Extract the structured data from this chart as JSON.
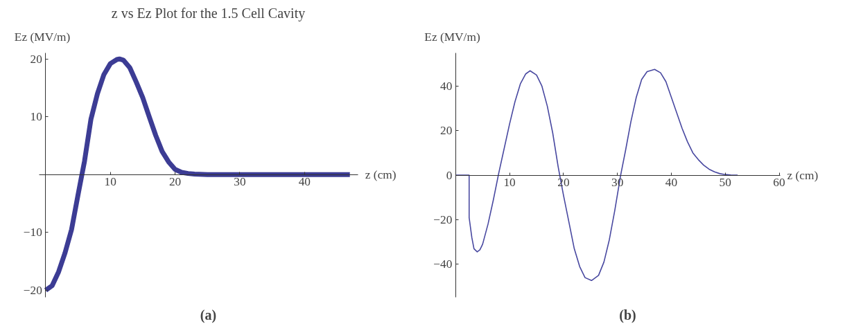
{
  "chart_data": [
    {
      "type": "line",
      "title": "z vs Ez Plot for the 1.5 Cell Cavity",
      "xlabel": "z (cm)",
      "ylabel": "Ez (MV/m)",
      "annotations": [
        "(a)"
      ],
      "xlim": [
        -1,
        48.3
      ],
      "ylim": [
        -21.2,
        21
      ],
      "xticks": [
        10,
        20,
        30,
        40
      ],
      "yticks": [
        -20,
        -10,
        10,
        20
      ],
      "grid": false,
      "line_style": "solid",
      "marker": "none",
      "series": [
        {
          "color": "#3c3c94",
          "x": [
            0,
            1,
            2,
            3,
            4,
            5,
            5.6,
            6,
            7,
            8,
            9,
            10,
            11,
            11.4,
            12,
            13,
            14,
            15,
            16,
            17,
            18,
            19,
            20,
            21,
            22,
            23,
            25,
            30,
            35,
            40,
            47
          ],
          "values": [
            -20,
            -19.2,
            -16.8,
            -13.5,
            -9.5,
            -3.5,
            0,
            2.3,
            9.6,
            14,
            17.3,
            19.2,
            19.9,
            20,
            19.8,
            18.5,
            16,
            13.3,
            10,
            6.8,
            4,
            2.2,
            0.9,
            0.4,
            0.2,
            0.1,
            0,
            0,
            0,
            0,
            0
          ]
        }
      ]
    },
    {
      "type": "line",
      "xlabel": "z (cm)",
      "ylabel": "Ez (MV/m)",
      "annotations": [
        "(b)"
      ],
      "xlim": [
        0,
        60.2
      ],
      "ylim": [
        -54.8,
        54.8
      ],
      "xticks": [
        10,
        20,
        30,
        40,
        50,
        60
      ],
      "yticks": [
        -40,
        -20,
        0,
        20,
        40
      ],
      "grid": false,
      "line_style": "solid",
      "marker": "none",
      "series": [
        {
          "color": "#4848a0",
          "x": [
            0,
            2.5,
            2.5,
            3,
            3.4,
            4,
            4.5,
            5,
            6,
            7,
            8,
            9,
            10,
            11,
            12,
            13,
            13.8,
            15,
            16,
            17,
            18,
            19,
            19.3,
            20,
            21,
            22,
            23,
            24,
            25.2,
            26.5,
            27.5,
            28.5,
            29.5,
            30.6,
            31.5,
            32.5,
            33.5,
            34.5,
            35.5,
            36.9,
            38,
            39,
            40,
            41,
            42,
            43,
            44,
            45,
            46,
            47,
            48,
            49,
            50,
            51,
            52.3
          ],
          "values": [
            0,
            0,
            -19,
            -28,
            -33,
            -34.4,
            -33.5,
            -31,
            -22,
            -11,
            1,
            12,
            23,
            33,
            41,
            45.5,
            46.9,
            45,
            40,
            31,
            19,
            4,
            0,
            -9,
            -21,
            -33,
            -41,
            -46,
            -47.3,
            -45,
            -39,
            -29,
            -16,
            0,
            11,
            24,
            35,
            43,
            46.5,
            47.5,
            46,
            42,
            35,
            28,
            21,
            15,
            10,
            7,
            4.5,
            2.7,
            1.5,
            0.7,
            0.3,
            0.1,
            0
          ]
        }
      ]
    }
  ]
}
